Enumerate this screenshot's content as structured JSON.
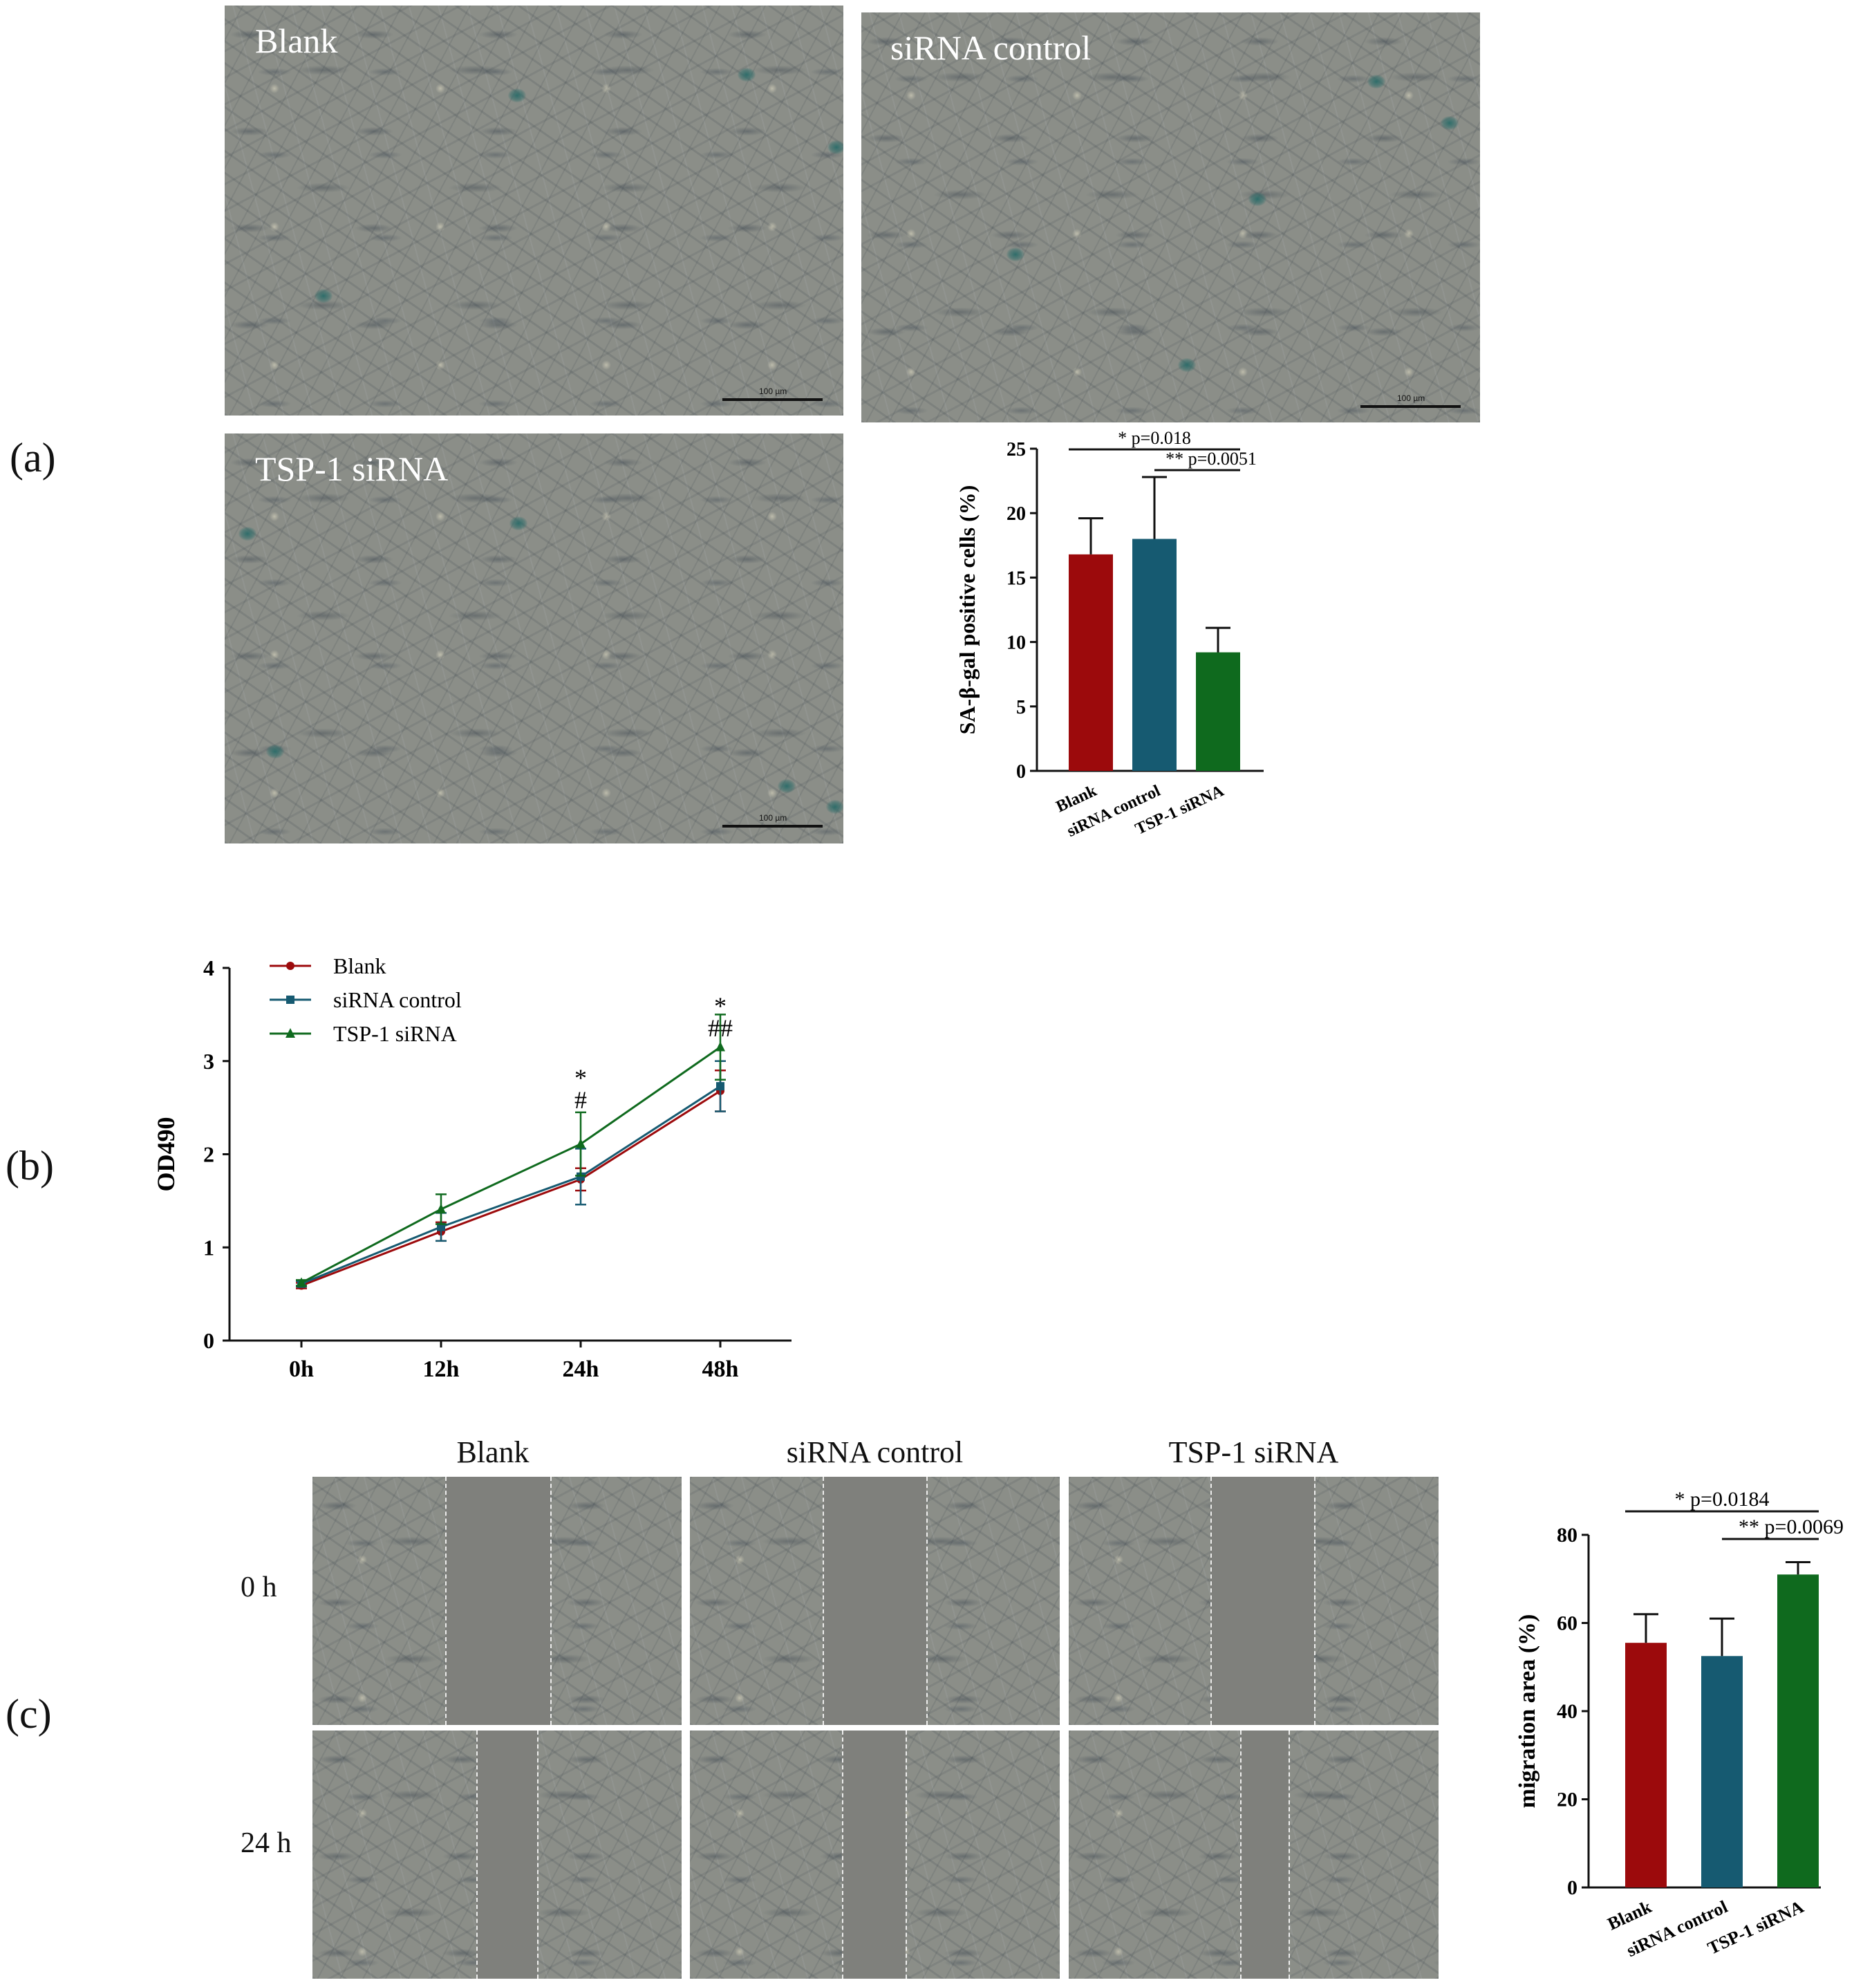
{
  "panel_labels": {
    "a": "(a)",
    "b": "(b)",
    "c": "(c)"
  },
  "panel_a": {
    "images": [
      "Blank",
      "siRNA control",
      "TSP-1 siRNA"
    ],
    "scale_label": "100 µm"
  },
  "panel_c_images": {
    "columns": [
      "Blank",
      "siRNA control",
      "TSP-1 siRNA"
    ],
    "rows": [
      "0 h",
      "24 h"
    ]
  },
  "colors": {
    "blank": "#9c0a0c",
    "sirna_control": "#165a71",
    "tsp1_sirna": "#0f6a1e"
  },
  "chart_data": [
    {
      "type": "bar",
      "panel": "a",
      "categories": [
        "Blank",
        "siRNA control",
        "TSP-1 siRNA"
      ],
      "values": [
        16.8,
        18.0,
        9.2
      ],
      "errors": [
        2.8,
        4.8,
        1.9
      ],
      "ylabel": "SA-β-gal positive cells (%)",
      "ylim": [
        0,
        25
      ],
      "yticks": [
        0,
        5,
        10,
        15,
        20,
        25
      ],
      "annotations": [
        {
          "text": "* p=0.018",
          "from": 0,
          "to": 2
        },
        {
          "text": "** p=0.0051",
          "from": 1,
          "to": 2
        }
      ]
    },
    {
      "type": "line",
      "panel": "b",
      "x": [
        "0h",
        "12h",
        "24h",
        "48h"
      ],
      "ylabel": "OD490",
      "ylim": [
        0,
        4
      ],
      "yticks": [
        0,
        1,
        2,
        3,
        4
      ],
      "legend": "top-left",
      "series": [
        {
          "name": "Blank",
          "values": [
            0.59,
            1.17,
            1.73,
            2.68
          ],
          "errors": [
            0.03,
            0.1,
            0.12,
            0.22
          ],
          "marker": "circle"
        },
        {
          "name": "siRNA control",
          "values": [
            0.61,
            1.22,
            1.76,
            2.73
          ],
          "errors": [
            0.03,
            0.15,
            0.3,
            0.27
          ],
          "marker": "square"
        },
        {
          "name": "TSP-1 siRNA",
          "values": [
            0.62,
            1.41,
            2.11,
            3.15
          ],
          "errors": [
            0.03,
            0.16,
            0.34,
            0.35
          ],
          "marker": "triangle"
        }
      ],
      "annotations": [
        {
          "x": "24h",
          "lines": [
            "*",
            "#"
          ]
        },
        {
          "x": "48h",
          "lines": [
            "*",
            "##"
          ]
        }
      ]
    },
    {
      "type": "bar",
      "panel": "c",
      "categories": [
        "Blank",
        "siRNA control",
        "TSP-1 siRNA"
      ],
      "values": [
        55.5,
        52.5,
        71.0
      ],
      "errors": [
        6.5,
        8.5,
        2.8
      ],
      "ylabel": "migration area (%)",
      "ylim": [
        0,
        80
      ],
      "yticks": [
        0,
        20,
        40,
        60,
        80
      ],
      "annotations": [
        {
          "text": "* p=0.0184",
          "from": 0,
          "to": 2
        },
        {
          "text": "** p=0.0069",
          "from": 1,
          "to": 2
        }
      ]
    }
  ]
}
